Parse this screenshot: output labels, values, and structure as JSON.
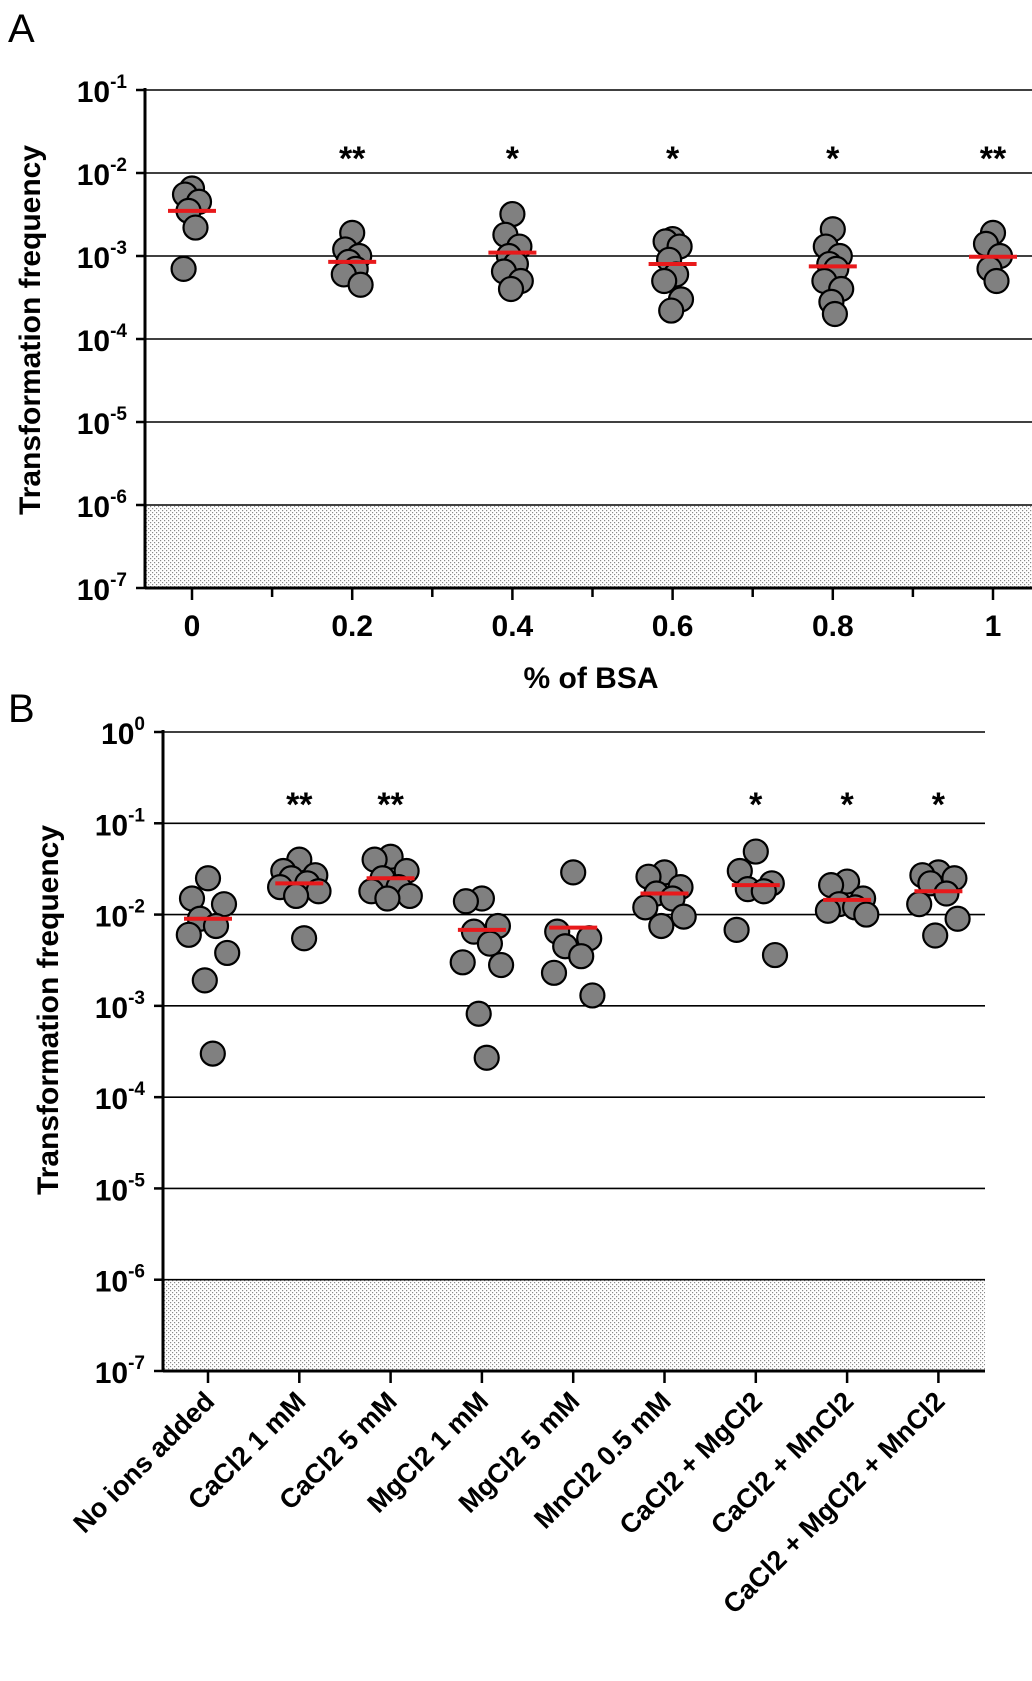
{
  "panels": [
    {
      "letter": "A",
      "ylabel": "Transformation frequency",
      "xlabel": "% of BSA",
      "detection_limit": "1e-6",
      "chart_data": {
        "type": "scatter",
        "title": "",
        "xlabel": "% of BSA",
        "ylabel": "Transformation frequency",
        "y_scale": "log",
        "ylim": [
          1e-07,
          0.1
        ],
        "xlim": [
          -0.05,
          1.05
        ],
        "x_ticks": [
          "0",
          "0.2",
          "0.4",
          "0.6",
          "0.8",
          "1"
        ],
        "x_minor_ticks": [
          0.1,
          0.3,
          0.5,
          0.7,
          0.9
        ],
        "y_ticks": [
          {
            "base": "10",
            "exp": "-1"
          },
          {
            "base": "10",
            "exp": "-2"
          },
          {
            "base": "10",
            "exp": "-3"
          },
          {
            "base": "10",
            "exp": "-4"
          },
          {
            "base": "10",
            "exp": "-5"
          },
          {
            "base": "10",
            "exp": "-6"
          },
          {
            "base": "10",
            "exp": "-7"
          }
        ],
        "grid": "horizontal",
        "groups": [
          {
            "x": 0,
            "label": "0",
            "sig": "",
            "mean": 0.0035,
            "points": [
              0.0065,
              0.0055,
              0.0045,
              0.0035,
              0.0022,
              0.0007
            ]
          },
          {
            "x": 0.2,
            "label": "0.2",
            "sig": "**",
            "mean": 0.00085,
            "points": [
              0.0019,
              0.0012,
              0.001,
              0.00085,
              0.0007,
              0.0006,
              0.00045
            ]
          },
          {
            "x": 0.4,
            "label": "0.4",
            "sig": "*",
            "mean": 0.0011,
            "points": [
              0.0032,
              0.0018,
              0.0013,
              0.001,
              0.0008,
              0.00065,
              0.0005,
              0.0004
            ]
          },
          {
            "x": 0.6,
            "label": "0.6",
            "sig": "*",
            "mean": 0.0008,
            "points": [
              0.0016,
              0.0015,
              0.0013,
              0.0009,
              0.0006,
              0.0005,
              0.0003,
              0.00022
            ]
          },
          {
            "x": 0.8,
            "label": "0.8",
            "sig": "*",
            "mean": 0.00075,
            "points": [
              0.0021,
              0.0013,
              0.001,
              0.0008,
              0.0007,
              0.0005,
              0.0004,
              0.00028,
              0.0002
            ]
          },
          {
            "x": 1,
            "label": "1",
            "sig": "**",
            "mean": 0.00098,
            "points": [
              0.0019,
              0.0014,
              0.001,
              0.0007,
              0.0005
            ]
          }
        ]
      }
    },
    {
      "letter": "B",
      "ylabel": "Transformation frequency",
      "xlabel": "",
      "detection_limit": "1e-6",
      "chart_data": {
        "type": "scatter",
        "title": "",
        "xlabel": "",
        "ylabel": "Transformation frequency",
        "y_scale": "log",
        "ylim": [
          1e-07,
          1
        ],
        "y_ticks": [
          {
            "base": "10",
            "exp": "0"
          },
          {
            "base": "10",
            "exp": "-1"
          },
          {
            "base": "10",
            "exp": "-2"
          },
          {
            "base": "10",
            "exp": "-3"
          },
          {
            "base": "10",
            "exp": "-4"
          },
          {
            "base": "10",
            "exp": "-5"
          },
          {
            "base": "10",
            "exp": "-6"
          },
          {
            "base": "10",
            "exp": "-7"
          }
        ],
        "grid": "horizontal",
        "categories": [
          "No ions added",
          "CaCl2 1 mM",
          "CaCl2 5 mM",
          "MgCl2 1 mM",
          "MgCl2 5 mM",
          "MnCl2 0.5 mM",
          "CaCl2 + MgCl2",
          "CaCl2 + MnCl2",
          "CaCl2 + MgCl2 + MnCl2"
        ],
        "groups": [
          {
            "label": "No ions added",
            "sig": "",
            "mean": 0.009,
            "points": [
              0.025,
              0.015,
              0.013,
              0.009,
              0.0075,
              0.006,
              0.0038,
              0.0019,
              0.0003
            ]
          },
          {
            "label": "CaCl2 1 mM",
            "sig": "**",
            "mean": 0.022,
            "points": [
              0.04,
              0.03,
              0.027,
              0.025,
              0.022,
              0.02,
              0.018,
              0.016,
              0.0055
            ]
          },
          {
            "label": "CaCl2 5 mM",
            "sig": "**",
            "mean": 0.025,
            "points": [
              0.043,
              0.04,
              0.03,
              0.025,
              0.02,
              0.018,
              0.016,
              0.015
            ]
          },
          {
            "label": "MgCl2 1 mM",
            "sig": "",
            "mean": 0.0068,
            "points": [
              0.015,
              0.014,
              0.0075,
              0.0065,
              0.0048,
              0.003,
              0.0028,
              0.00082,
              0.00027
            ]
          },
          {
            "label": "MgCl2 5 mM",
            "sig": "",
            "mean": 0.0072,
            "points": [
              0.029,
              0.0065,
              0.0055,
              0.0045,
              0.0035,
              0.0023,
              0.0013
            ]
          },
          {
            "label": "MnCl2 0.5 mM",
            "sig": "",
            "mean": 0.017,
            "points": [
              0.029,
              0.026,
              0.02,
              0.017,
              0.015,
              0.012,
              0.0095,
              0.0075
            ]
          },
          {
            "label": "CaCl2 + MgCl2",
            "sig": "*",
            "mean": 0.021,
            "points": [
              0.049,
              0.03,
              0.022,
              0.019,
              0.018,
              0.0068,
              0.0036
            ]
          },
          {
            "label": "CaCl2 + MnCl2",
            "sig": "*",
            "mean": 0.0145,
            "points": [
              0.023,
              0.021,
              0.015,
              0.013,
              0.012,
              0.011,
              0.01
            ]
          },
          {
            "label": "CaCl2 + MgCl2 + MnCl2",
            "sig": "*",
            "mean": 0.018,
            "points": [
              0.029,
              0.027,
              0.025,
              0.022,
              0.017,
              0.013,
              0.009,
              0.0059
            ]
          }
        ]
      }
    }
  ],
  "colors": {
    "point_fill": "#808080",
    "point_stroke": "#000000",
    "mean_line": "#e8191b",
    "grid": "#000000",
    "hatch": "#9a9a9a"
  }
}
